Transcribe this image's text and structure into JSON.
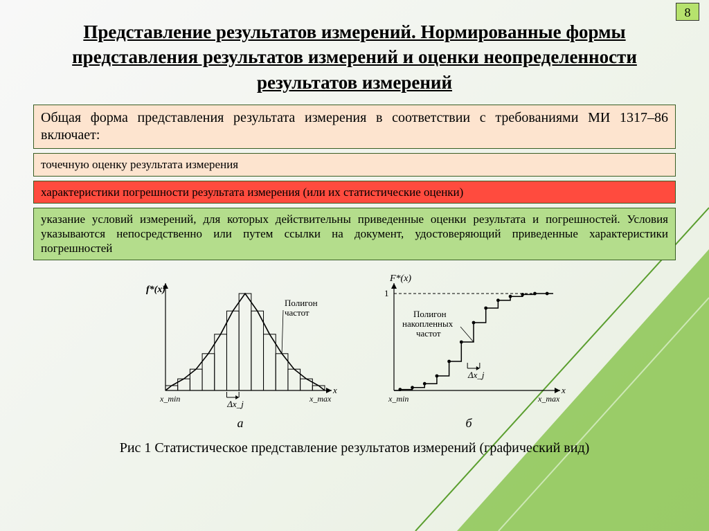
{
  "page_number": "8",
  "title": "Представление результатов измерений. Нормированные формы представления результатов измерений и оценки неопределенности результатов измерений",
  "intro_box": "Общая форма представления результата измерения в соответствии с требованиями МИ 1317–86 включает:",
  "item1": "точечную оценку результата измерения",
  "item2": "характеристики погрешности результата измерения (или их статистические оценки)",
  "item3": "указание условий измерений, для которых действительны приведенные оценки результата и погрешностей. Условия указываются непосредственно или путем ссылки на документ, удостоверяющий приведенные характеристики погрешностей",
  "caption": "Рис 1 Статистическое представление результатов измерений (графический вид)",
  "chart_a": {
    "type": "histogram-with-density",
    "y_label": "f*(x)",
    "annotation": "Полигон частот",
    "x_min_label": "x_min",
    "x_max_label": "x_max",
    "x_axis_label": "x",
    "delta_label": "Δx_j",
    "sub_label": "а",
    "colors": {
      "axis": "#000000",
      "curve": "#000000",
      "bars": "#000000"
    },
    "bars": [
      0.05,
      0.12,
      0.22,
      0.38,
      0.58,
      0.82,
      1.0,
      0.82,
      0.58,
      0.38,
      0.22,
      0.12,
      0.05
    ],
    "line_width": 1.2
  },
  "chart_b": {
    "type": "cdf-step",
    "y_label": "F*(x)",
    "y_one_label": "1",
    "annotation": "Полигон накопленных частот",
    "x_min_label": "x_min",
    "x_max_label": "x_max",
    "x_axis_label": "x",
    "delta_label": "Δx_j",
    "sub_label": "б",
    "colors": {
      "axis": "#000000",
      "curve": "#000000",
      "marker": "#000000"
    },
    "points": [
      0.01,
      0.03,
      0.07,
      0.15,
      0.3,
      0.5,
      0.7,
      0.85,
      0.93,
      0.97,
      0.99,
      1.0,
      1.0
    ],
    "line_width": 1.2
  },
  "background": {
    "polygon_fill": "#7fbf3f",
    "polygon_stroke": "#5a9e2e"
  }
}
